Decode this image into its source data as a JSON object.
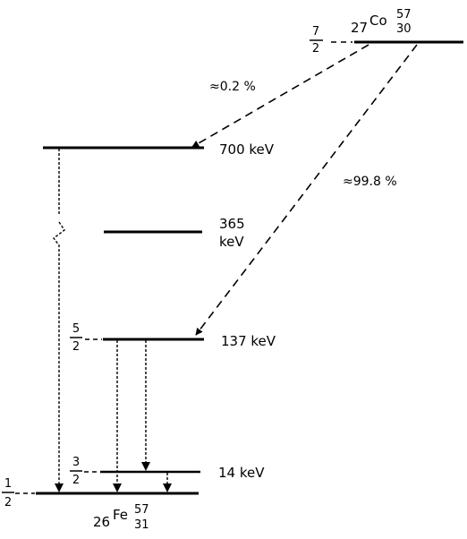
{
  "parent": {
    "atomic_number": "27",
    "symbol": "Co",
    "mass_number": "57",
    "neutron_number": "30",
    "spin_num": "7",
    "spin_den": "2"
  },
  "daughter": {
    "atomic_number": "26",
    "symbol": "Fe",
    "mass_number": "57",
    "neutron_number": "31"
  },
  "levels": {
    "e700": {
      "label": "700 keV"
    },
    "e365": {
      "label_line1": "365",
      "label_line2": "keV"
    },
    "e137": {
      "label": "137 keV",
      "spin_num": "5",
      "spin_den": "2"
    },
    "e14": {
      "label": "14 keV",
      "spin_num": "3",
      "spin_den": "2"
    },
    "ground": {
      "spin_num": "1",
      "spin_den": "2"
    }
  },
  "branches": {
    "to_700": "≈0.2 %",
    "to_137": "≈99.8 %"
  }
}
